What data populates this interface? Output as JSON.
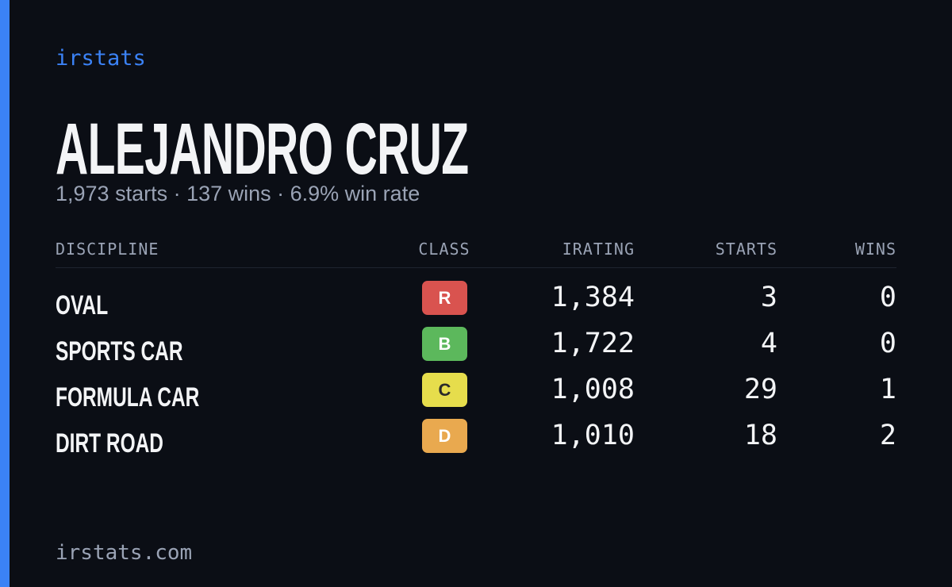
{
  "header": {
    "brand": "irstats",
    "name": "ALEJANDRO CRUZ",
    "summary": "1,973 starts · 137 wins · 6.9% win rate"
  },
  "table": {
    "columns": [
      "DISCIPLINE",
      "CLASS",
      "IRATING",
      "STARTS",
      "WINS"
    ],
    "rows": [
      [
        "OVAL",
        "R",
        "1,384",
        "3",
        "0"
      ],
      [
        "SPORTS CAR",
        "B",
        "1,722",
        "4",
        "0"
      ],
      [
        "FORMULA CAR",
        "C",
        "1,008",
        "29",
        "1"
      ],
      [
        "DIRT ROAD",
        "D",
        "1,010",
        "18",
        "2"
      ]
    ]
  },
  "footer": {
    "url": "irstats.com"
  }
}
